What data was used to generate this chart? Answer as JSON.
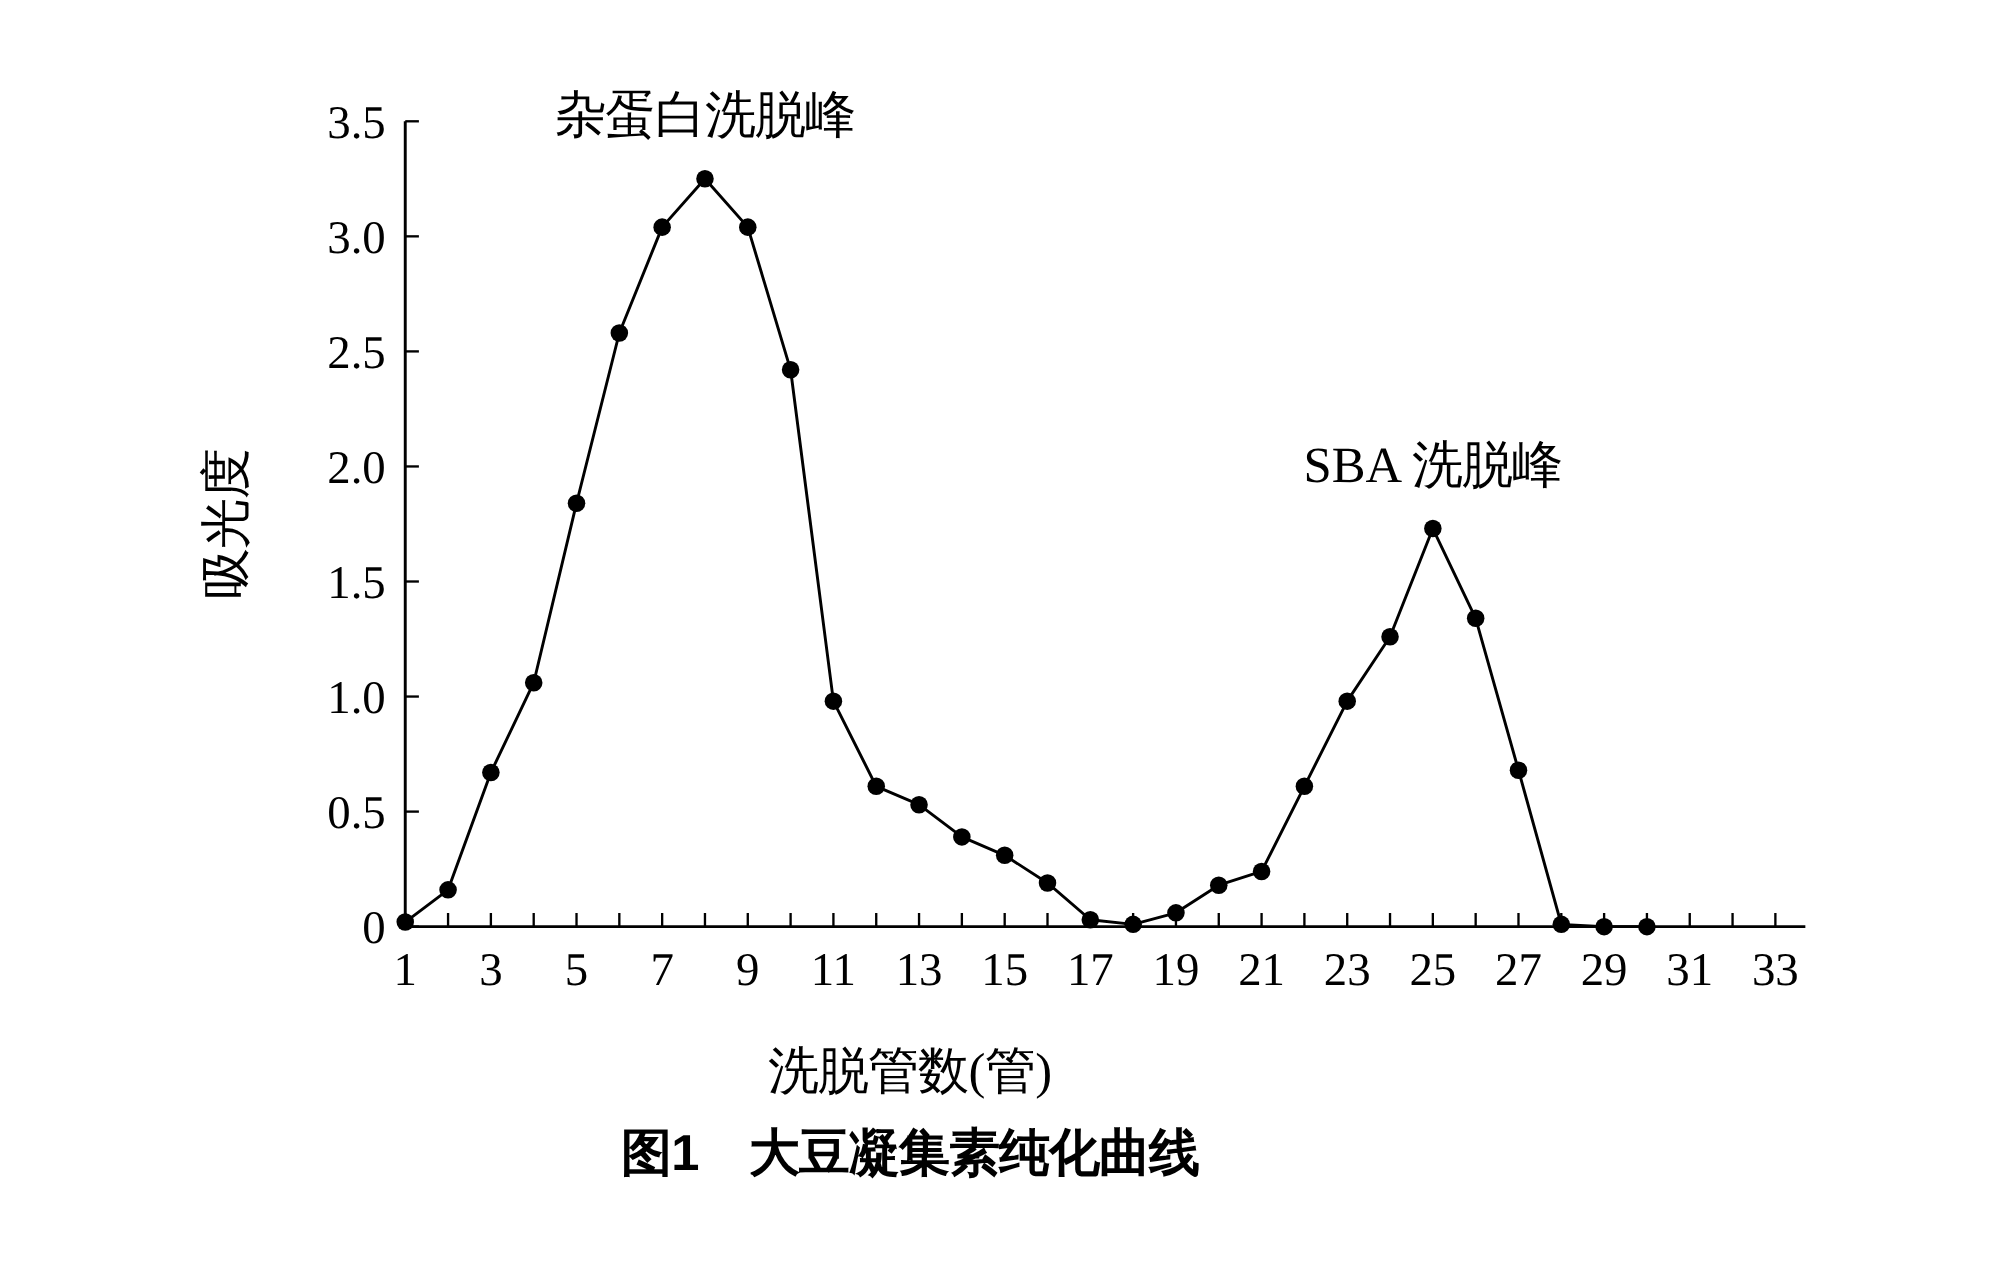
{
  "chart_data": {
    "type": "line",
    "title": "图1　大豆凝集素纯化曲线",
    "xlabel": "洗脱管数(管)",
    "ylabel": "吸光度",
    "x": [
      1,
      2,
      3,
      4,
      5,
      6,
      7,
      8,
      9,
      10,
      11,
      12,
      13,
      14,
      15,
      16,
      17,
      18,
      19,
      20,
      21,
      22,
      23,
      24,
      25,
      26,
      27,
      28,
      29,
      30
    ],
    "series": [
      {
        "color": "#000000",
        "values": [
          0.02,
          0.16,
          0.67,
          1.06,
          1.84,
          2.58,
          3.04,
          3.25,
          3.04,
          2.42,
          0.98,
          0.61,
          0.53,
          0.39,
          0.31,
          0.19,
          0.03,
          0.01,
          0.06,
          0.18,
          0.24,
          0.61,
          0.98,
          1.26,
          1.73,
          1.34,
          0.68,
          0.01,
          0,
          0
        ]
      }
    ],
    "annotations": [
      {
        "text": "杂蛋白洗脱峰",
        "x": 8,
        "y": 3.25
      },
      {
        "text": "SBA 洗脱峰",
        "x": 25,
        "y": 1.73
      }
    ],
    "xlim": [
      1,
      33.7
    ],
    "xticks": [
      1,
      {
        "value": 2,
        "label": null
      },
      3,
      {
        "value": 4,
        "label": null
      },
      5,
      {
        "value": 6,
        "label": null
      },
      7,
      {
        "value": 8,
        "label": null
      },
      9,
      {
        "value": 10,
        "label": null
      },
      11,
      {
        "value": 12,
        "label": null
      },
      13,
      {
        "value": 14,
        "label": null
      },
      15,
      {
        "value": 16,
        "label": null
      },
      17,
      {
        "value": 18,
        "label": null
      },
      19,
      {
        "value": 20,
        "label": null
      },
      21,
      {
        "value": 22,
        "label": null
      },
      23,
      {
        "value": 24,
        "label": null
      },
      25,
      {
        "value": 26,
        "label": null
      },
      27,
      {
        "value": 28,
        "label": null
      },
      29,
      {
        "value": 30,
        "label": null
      },
      31,
      {
        "value": 32,
        "label": null
      },
      33
    ],
    "ylim": [
      0,
      3.5
    ],
    "yticks": [
      0,
      {
        "value": 0.5,
        "label": "0.5"
      },
      {
        "value": 1,
        "label": "1.0"
      },
      {
        "value": 1.5,
        "label": "1.5"
      },
      {
        "value": 2,
        "label": "2.0"
      },
      {
        "value": 2.5,
        "label": "2.5"
      },
      {
        "value": 3,
        "label": "3.0"
      },
      {
        "value": 3.5,
        "label": "3.5"
      }
    ],
    "marker": "circle",
    "line_style": "solid"
  }
}
